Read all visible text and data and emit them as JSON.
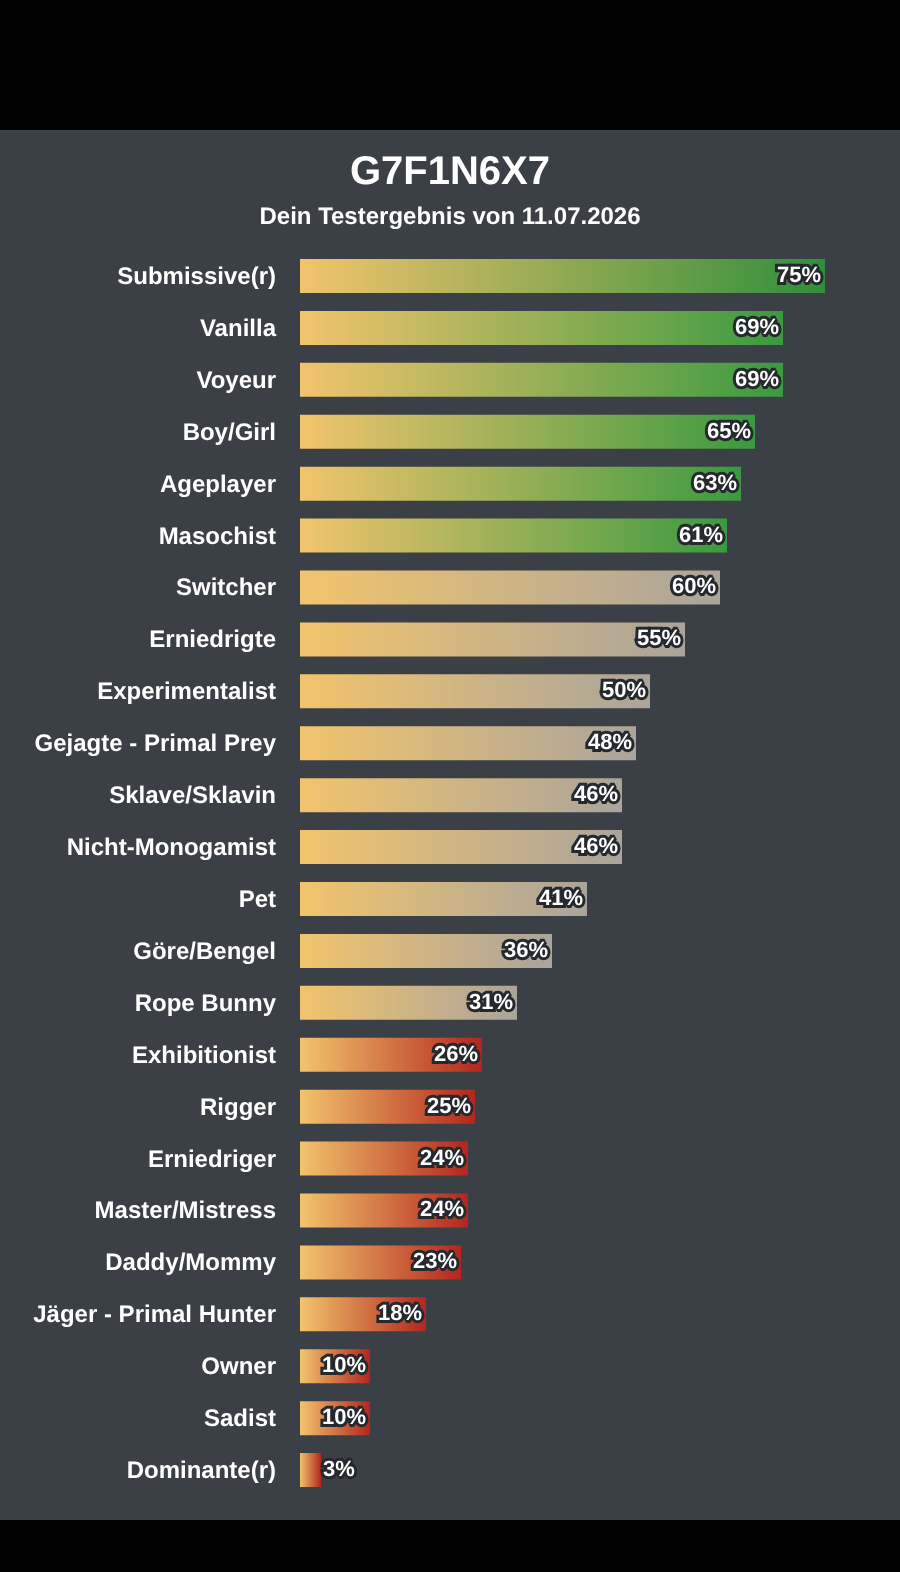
{
  "chart_data": {
    "type": "bar",
    "orientation": "horizontal",
    "title": "G7F1N6X7",
    "subtitle": "Dein Testergebnis von 11.07.2026",
    "categories": [
      "Submissive(r)",
      "Vanilla",
      "Voyeur",
      "Boy/Girl",
      "Ageplayer",
      "Masochist",
      "Switcher",
      "Erniedrigte",
      "Experimentalist",
      "Gejagte - Primal Prey",
      "Sklave/Sklavin",
      "Nicht-Monogamist",
      "Pet",
      "Göre/Bengel",
      "Rope Bunny",
      "Exhibitionist",
      "Rigger",
      "Erniedriger",
      "Master/Mistress",
      "Daddy/Mommy",
      "Jäger - Primal Hunter",
      "Owner",
      "Sadist",
      "Dominante(r)"
    ],
    "values": [
      75,
      69,
      69,
      65,
      63,
      61,
      60,
      55,
      50,
      48,
      46,
      46,
      41,
      36,
      31,
      26,
      25,
      24,
      24,
      23,
      18,
      10,
      10,
      3
    ],
    "value_labels": [
      "75%",
      "69%",
      "69%",
      "65%",
      "63%",
      "61%",
      "60%",
      "55%",
      "50%",
      "48%",
      "46%",
      "46%",
      "41%",
      "36%",
      "31%",
      "26%",
      "25%",
      "24%",
      "24%",
      "23%",
      "18%",
      "10%",
      "10%",
      "3%"
    ],
    "colors": [
      "#2f8f3a",
      "#3a9a40",
      "#3a9a40",
      "#3a9a40",
      "#3a9a40",
      "#3a9a40",
      "#aaa49c",
      "#aaa49c",
      "#aaa49c",
      "#aaa49c",
      "#aaa49c",
      "#aaa49c",
      "#aaa49c",
      "#aaa49c",
      "#aaa49c",
      "#b3261e",
      "#b3261e",
      "#b3261e",
      "#b3261e",
      "#b3261e",
      "#b3261e",
      "#b3261e",
      "#b3261e",
      "#b3261e"
    ],
    "tick_labels": "y"
  }
}
